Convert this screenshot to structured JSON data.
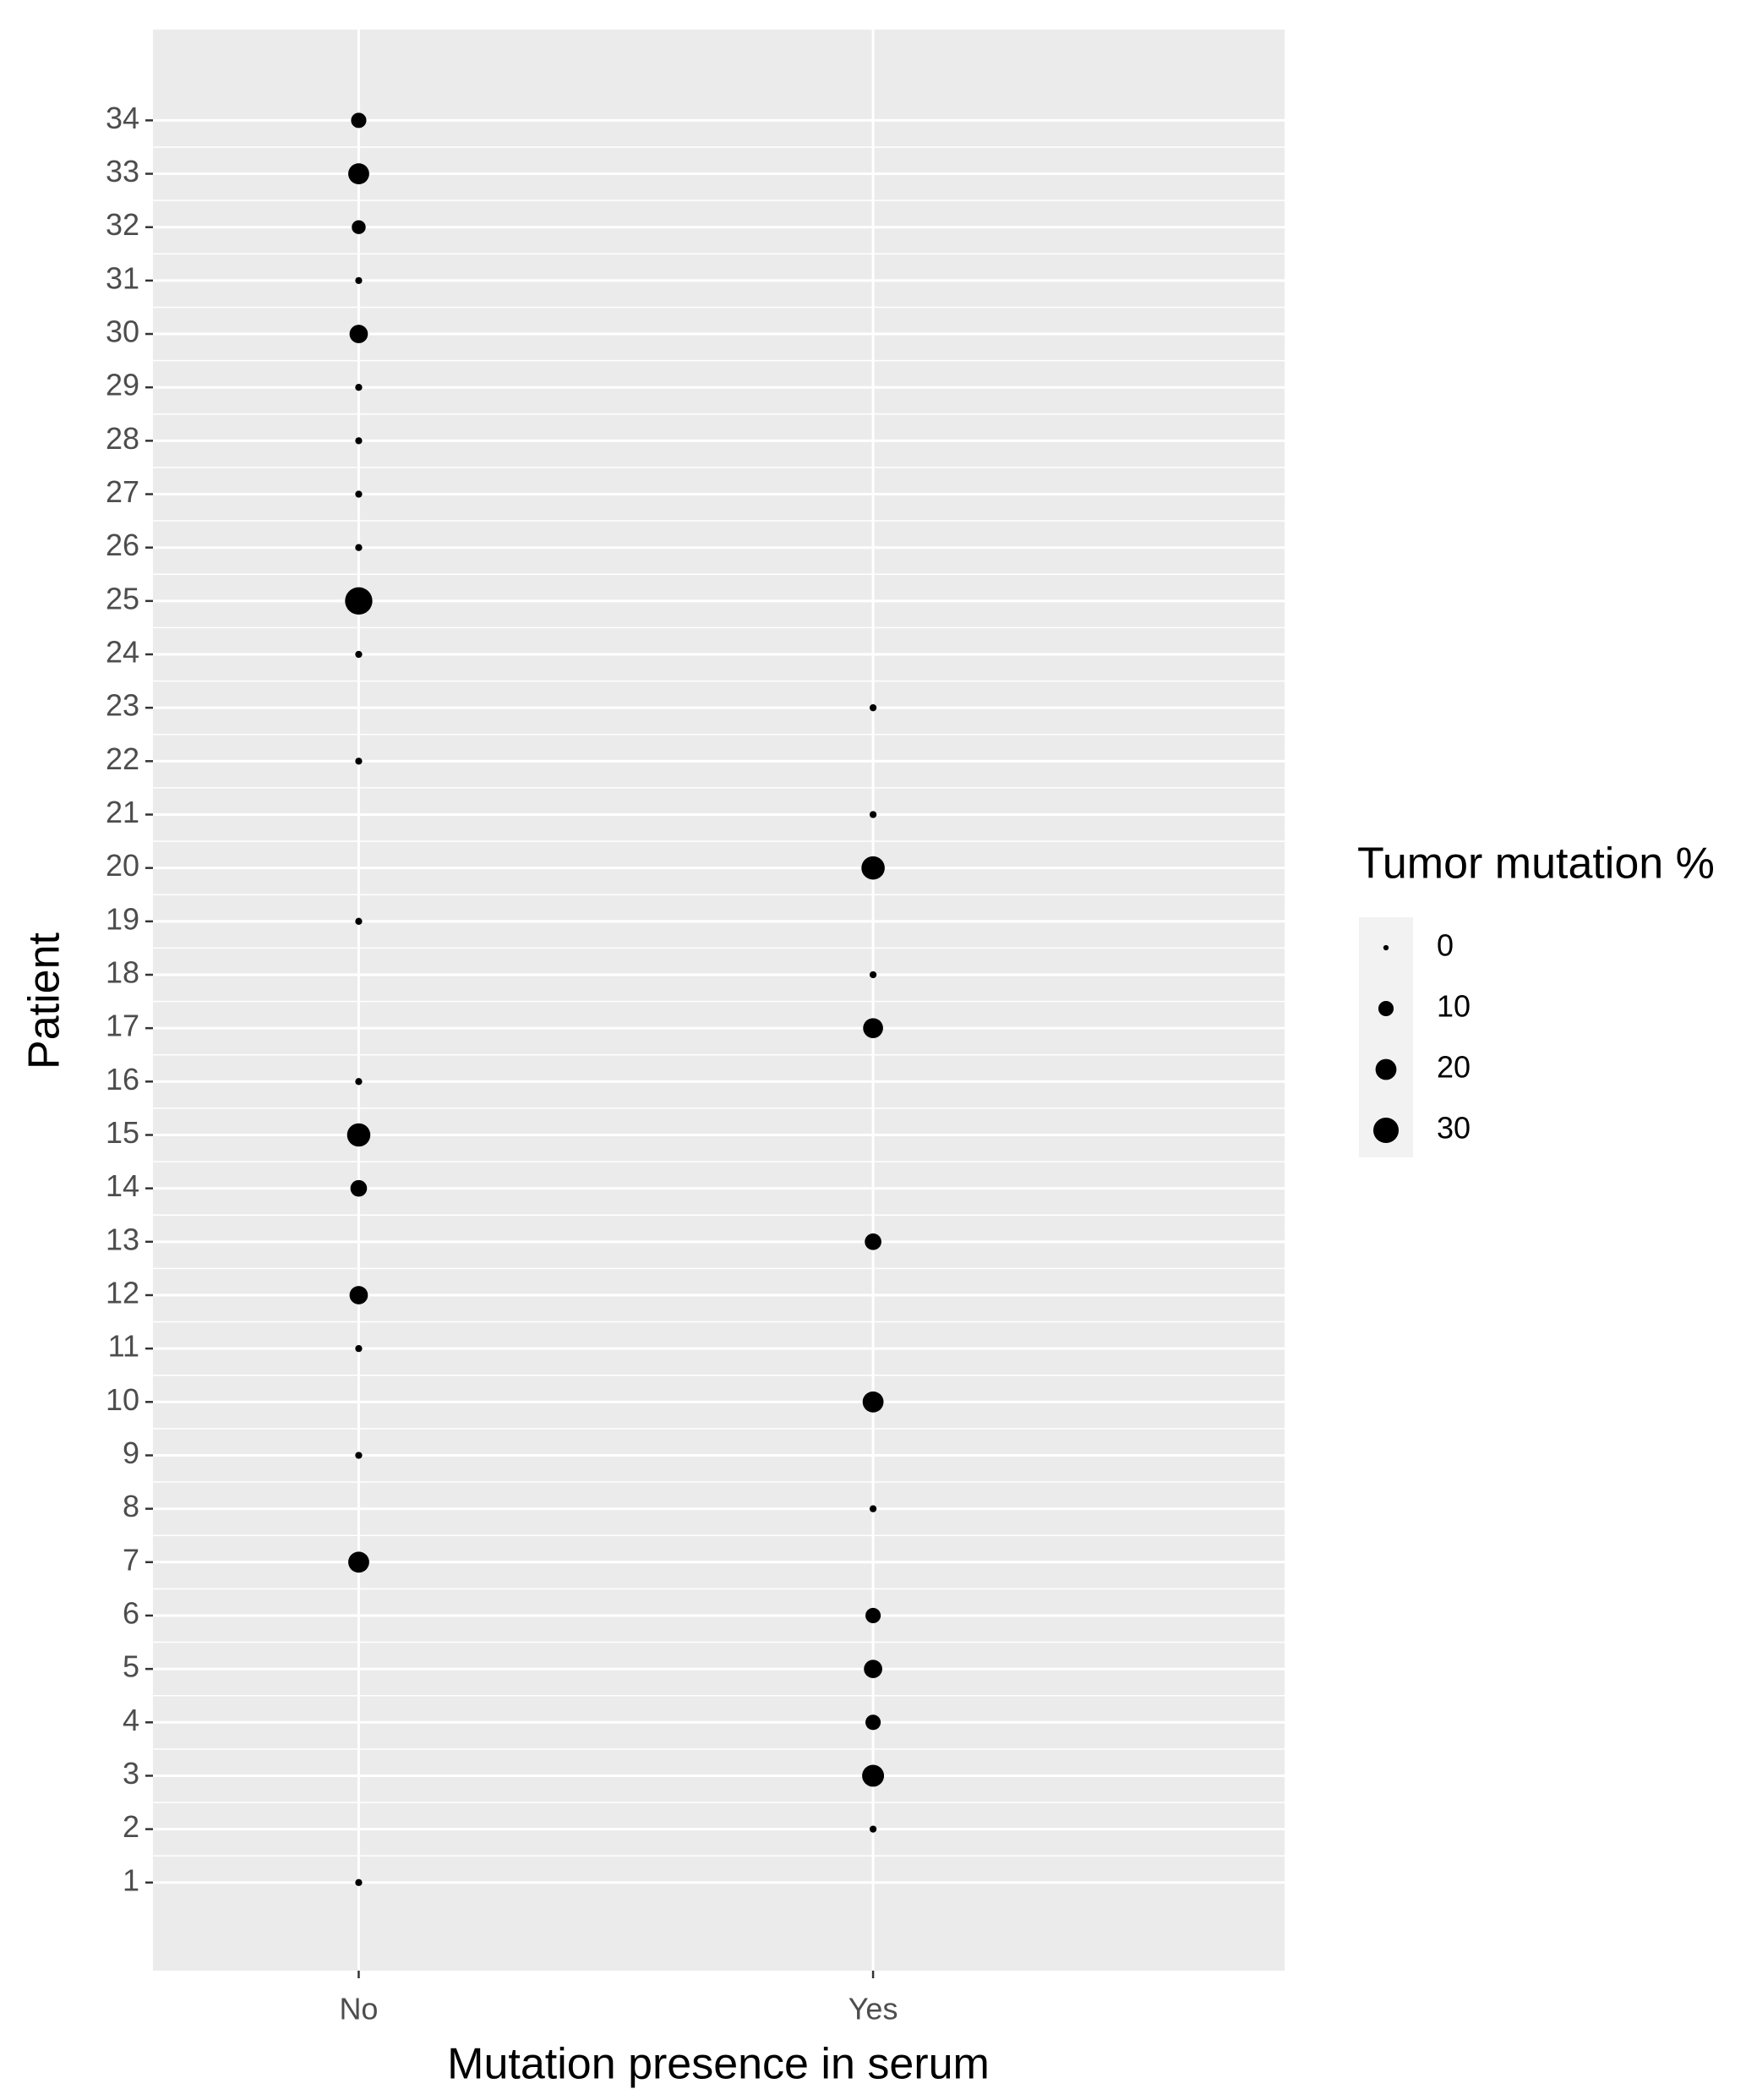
{
  "chart_data": {
    "type": "scatter",
    "x_label": "Mutation presence in serum",
    "y_label": "Patient",
    "x_categories": [
      "No",
      "Yes"
    ],
    "x": [
      "No",
      "Yes",
      "Yes",
      "Yes",
      "Yes",
      "Yes",
      "No",
      "Yes",
      "No",
      "Yes",
      "No",
      "No",
      "Yes",
      "No",
      "No",
      "No",
      "Yes",
      "Yes",
      "No",
      "Yes",
      "Yes",
      "No",
      "Yes",
      "No",
      "No",
      "No",
      "No",
      "No",
      "No",
      "No",
      "No",
      "No",
      "No",
      "No"
    ],
    "y": [
      1,
      2,
      3,
      4,
      5,
      6,
      7,
      8,
      9,
      10,
      11,
      12,
      13,
      14,
      15,
      16,
      17,
      18,
      19,
      20,
      21,
      22,
      23,
      24,
      25,
      26,
      27,
      28,
      29,
      30,
      31,
      32,
      33,
      34
    ],
    "sizes": [
      1,
      1,
      22,
      10,
      15,
      10,
      20,
      1,
      1,
      20,
      1,
      15,
      12,
      12,
      25,
      1,
      18,
      1,
      1,
      25,
      1,
      1,
      1,
      1,
      35,
      1,
      1,
      1,
      1,
      15,
      1,
      8,
      20,
      10
    ],
    "color": "#000000",
    "ylim": [
      -0.65,
      35.7
    ],
    "yticks": [
      1,
      2,
      3,
      4,
      5,
      6,
      7,
      8,
      9,
      10,
      11,
      12,
      13,
      14,
      15,
      16,
      17,
      18,
      19,
      20,
      21,
      22,
      23,
      24,
      25,
      26,
      27,
      28,
      29,
      30,
      31,
      32,
      33,
      34
    ],
    "grid": true,
    "legend": {
      "title": "Tumor mutation %",
      "values": [
        0,
        10,
        20,
        30
      ],
      "position": "right"
    }
  }
}
